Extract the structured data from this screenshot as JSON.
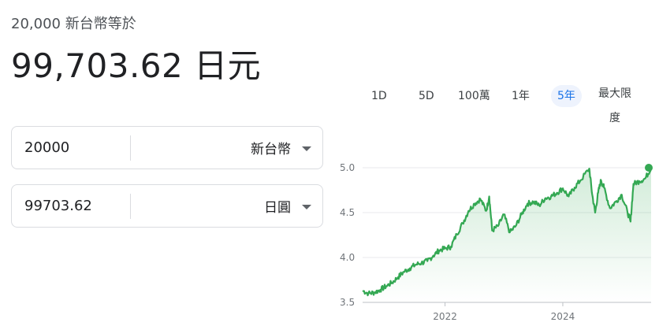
{
  "header": {
    "subtitle": "20,000 新台幣等於",
    "result": "99,703.62 日元"
  },
  "converter": {
    "from": {
      "amount": "20000",
      "currency": "新台幣"
    },
    "to": {
      "amount": "99703.62",
      "currency": "日圓"
    }
  },
  "range_tabs": [
    {
      "label": "1D",
      "active": false
    },
    {
      "label": "5D",
      "active": false
    },
    {
      "label": "100萬",
      "active": false
    },
    {
      "label": "1年",
      "active": false
    },
    {
      "label": "5年",
      "active": true
    },
    {
      "label": "最大限度",
      "active": false
    }
  ],
  "colors": {
    "line": "#34a853",
    "accent": "#1a73e8",
    "grid": "#e8eaed"
  },
  "chart_data": {
    "type": "area",
    "title": "",
    "xlabel": "",
    "ylabel": "",
    "ylim": [
      3.5,
      5.0
    ],
    "xlim": [
      2020.6,
      2025.5
    ],
    "y_ticks": [
      "3.5",
      "4.0",
      "4.5",
      "5.0"
    ],
    "x_ticks": [
      {
        "label": "2022",
        "value": 2022.0
      },
      {
        "label": "2024",
        "value": 2024.0
      }
    ],
    "grid": true,
    "series": [
      {
        "x": [
          2020.6,
          2020.7,
          2020.8,
          2020.9,
          2021.0,
          2021.1,
          2021.2,
          2021.3,
          2021.4,
          2021.5,
          2021.6,
          2021.7,
          2021.8,
          2021.9,
          2022.0,
          2022.1,
          2022.2,
          2022.3,
          2022.4,
          2022.5,
          2022.6,
          2022.7,
          2022.75,
          2022.8,
          2022.9,
          2023.0,
          2023.1,
          2023.2,
          2023.3,
          2023.4,
          2023.5,
          2023.6,
          2023.7,
          2023.8,
          2023.9,
          2024.0,
          2024.1,
          2024.2,
          2024.3,
          2024.45,
          2024.5,
          2024.55,
          2024.6,
          2024.65,
          2024.7,
          2024.8,
          2024.9,
          2025.0,
          2025.1,
          2025.15,
          2025.2,
          2025.3,
          2025.4,
          2025.5
        ],
        "y": [
          3.63,
          3.6,
          3.61,
          3.64,
          3.68,
          3.72,
          3.78,
          3.84,
          3.88,
          3.92,
          3.94,
          3.96,
          4.02,
          4.08,
          4.1,
          4.12,
          4.26,
          4.38,
          4.52,
          4.6,
          4.65,
          4.52,
          4.68,
          4.3,
          4.35,
          4.48,
          4.28,
          4.35,
          4.48,
          4.6,
          4.62,
          4.58,
          4.66,
          4.68,
          4.72,
          4.77,
          4.68,
          4.78,
          4.86,
          4.99,
          4.7,
          4.5,
          4.72,
          4.86,
          4.78,
          4.55,
          4.62,
          4.7,
          4.5,
          4.4,
          4.82,
          4.85,
          4.88,
          5.0
        ]
      }
    ]
  }
}
